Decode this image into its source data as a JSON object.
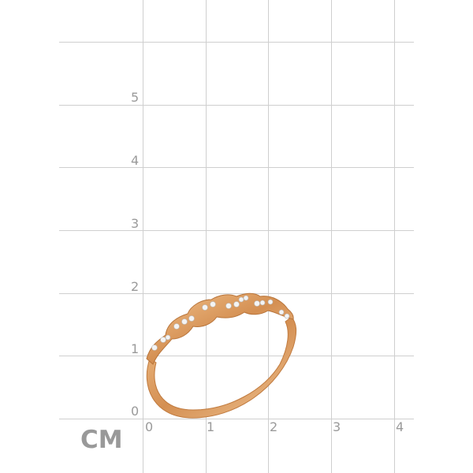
{
  "ruler": {
    "unit": "CM",
    "y_ticks": [
      "0",
      "1",
      "2",
      "3",
      "4",
      "5"
    ],
    "x_ticks": [
      "0",
      "1",
      "2",
      "3",
      "4"
    ],
    "grid_color": "#cfcfcf",
    "label_color": "#9a9a9a"
  },
  "product": {
    "type": "ring",
    "metal_color": "#d9975a",
    "stone_color": "#f4f4f4"
  }
}
